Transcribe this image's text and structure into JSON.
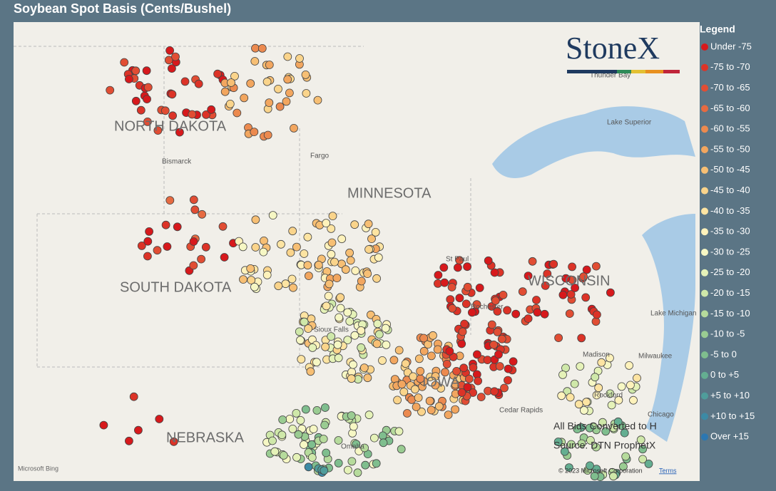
{
  "header": {
    "title": "Soybean Spot Basis (Cents/Bushel)"
  },
  "legend": {
    "title": "Legend",
    "items": [
      {
        "label": "Under -75",
        "color": "#d7191c"
      },
      {
        "label": "-75 to -70",
        "color": "#dc3327"
      },
      {
        "label": "-70 to -65",
        "color": "#e14d33"
      },
      {
        "label": "-65 to -60",
        "color": "#e66a41"
      },
      {
        "label": "-60 to -55",
        "color": "#ec8a4f"
      },
      {
        "label": "-55 to -50",
        "color": "#f2a65f"
      },
      {
        "label": "-50 to -45",
        "color": "#f7bf74"
      },
      {
        "label": "-45 to -40",
        "color": "#fad48b"
      },
      {
        "label": "-40 to -35",
        "color": "#fde4a2"
      },
      {
        "label": "-35 to -30",
        "color": "#fef2bb"
      },
      {
        "label": "-30 to -25",
        "color": "#f6f7c4"
      },
      {
        "label": "-25 to -20",
        "color": "#e5f2b8"
      },
      {
        "label": "-20 to -15",
        "color": "#cfe8a9"
      },
      {
        "label": "-15 to -10",
        "color": "#b6db9c"
      },
      {
        "label": "-10 to -5",
        "color": "#9acc92"
      },
      {
        "label": "-5 to 0",
        "color": "#7fbe8e"
      },
      {
        "label": "0 to +5",
        "color": "#64ae91"
      },
      {
        "label": "+5 to +10",
        "color": "#4f9d9b"
      },
      {
        "label": "+10 to +15",
        "color": "#3c8aa5"
      },
      {
        "label": "Over +15",
        "color": "#2c77b1"
      }
    ]
  },
  "map": {
    "states": [
      "NORTH DAKOTA",
      "MINNESOTA",
      "SOUTH DAKOTA",
      "WISCONSIN",
      "IOWA",
      "NEBRASKA"
    ],
    "places": [
      "Bismarck",
      "Fargo",
      "St Paul",
      "Rochester",
      "Thunder Bay",
      "Lake Superior",
      "Lake Michigan",
      "Madison",
      "Milwaukee",
      "Rockford",
      "Chicago",
      "Sioux Falls",
      "Omaha",
      "Cedar Rapids"
    ],
    "notes": [
      "All Bids Converted to H",
      "Source: DTN ProphetX"
    ],
    "logo": "StoneX",
    "attribution": "Microsoft Bing",
    "copyright": "© 2023 Microsoft Corporation",
    "terms": "Terms"
  }
}
